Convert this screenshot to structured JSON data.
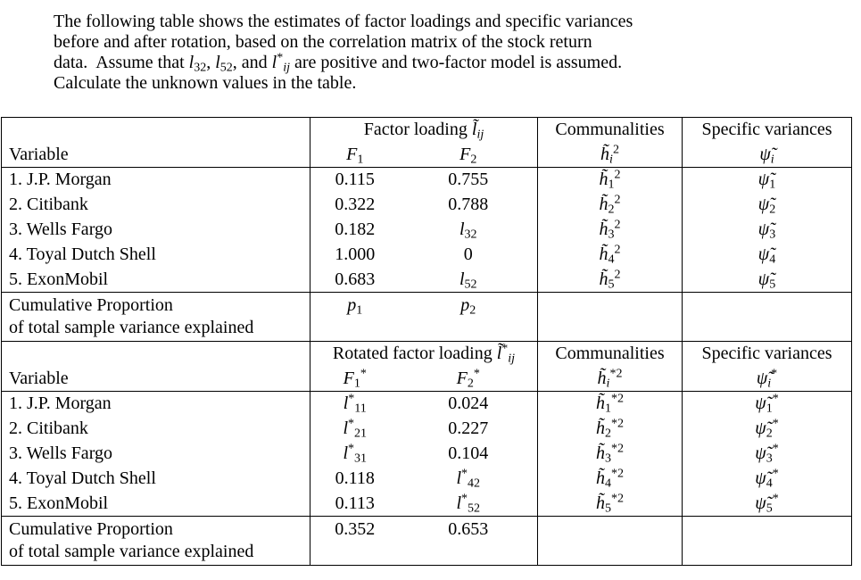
{
  "colors": {
    "background": "#ffffff",
    "text": "#000000",
    "table_border": "#000000"
  },
  "problem": {
    "text_html": "The following table shows the estimates of factor loadings and specific variances<br>before and after rotation, based on the correlation matrix of the stock return<br>data.  Assume that <i>l</i><sub>32</sub>, <i>l</i><sub>52</sub>, and <i>l</i><sup>*</sup><sub><i>ij</i></sub> are positive and two-factor model is assumed.<br>Calculate the unknown values in the table."
  },
  "table": {
    "section_before": {
      "group_label_html": "Factor loading <i>l̃</i><sub><i>ij</i></sub>",
      "communalities_label": "Communalities",
      "specific_variances_label": "Specific variances",
      "variable_label": "Variable",
      "f1_html": "<i>F</i><sub>1</sub>",
      "f2_html": "<i>F</i><sub>2</sub>",
      "communality_symbol_html": "<i>h̃</i><sub><i>i</i></sub><sup>2</sup>",
      "specific_variance_symbol_html": "<i>ψ̃</i><sub><i>i</i></sub>",
      "rows": [
        {
          "variable": "1. J.P. Morgan",
          "f1": "0.115",
          "f2": "0.755",
          "communality": "<i>h̃</i><sub>1</sub><sup>2</sup>",
          "specific_variance": "<i>ψ̃</i><sub>1</sub>"
        },
        {
          "variable": "2. Citibank",
          "f1": "0.322",
          "f2": "0.788",
          "communality": "<i>h̃</i><sub>2</sub><sup>2</sup>",
          "specific_variance": "<i>ψ̃</i><sub>2</sub>"
        },
        {
          "variable": "3. Wells Fargo",
          "f1": "0.182",
          "f2": "<i>l</i><sub>32</sub>",
          "communality": "<i>h̃</i><sub>3</sub><sup>2</sup>",
          "specific_variance": "<i>ψ̃</i><sub>3</sub>"
        },
        {
          "variable": "4. Toyal Dutch Shell",
          "f1": "1.000",
          "f2": "0",
          "communality": "<i>h̃</i><sub>4</sub><sup>2</sup>",
          "specific_variance": "<i>ψ̃</i><sub>4</sub>"
        },
        {
          "variable": "5. ExonMobil",
          "f1": "0.683",
          "f2": "<i>l</i><sub>52</sub>",
          "communality": "<i>h̃</i><sub>5</sub><sup>2</sup>",
          "specific_variance": "<i>ψ̃</i><sub>5</sub>"
        }
      ],
      "cumulative": {
        "label_html": "Cumulative Proportion<br>of total sample variance explained",
        "f1_html": "<i>p</i><sub>1</sub>",
        "f2_html": "<i>p</i><sub>2</sub>"
      }
    },
    "section_after": {
      "group_label_html": "Rotated factor loading <i>l̃</i><sup>*</sup><sub><i>ij</i></sub>",
      "communalities_label": "Communalities",
      "specific_variances_label": "Specific variances",
      "variable_label": "Variable",
      "f1_html": "<i>F</i><sub>1</sub><sup>*</sup>",
      "f2_html": "<i>F</i><sub>2</sub><sup>*</sup>",
      "communality_symbol_html": "<i>h̃</i><sub><i>i</i></sub><sup>*2</sup>",
      "specific_variance_symbol_html": "<i>ψ̃</i><sub><i>i</i></sub><sup>*</sup>",
      "rows": [
        {
          "variable": "1. J.P. Morgan",
          "f1": "<i>l</i><sup>*</sup><sub>11</sub>",
          "f2": "0.024",
          "communality": "<i>h̃</i><sub>1</sub><sup>*2</sup>",
          "specific_variance": "<i>ψ̃</i><sub>1</sub><sup>*</sup>"
        },
        {
          "variable": "2. Citibank",
          "f1": "<i>l</i><sup>*</sup><sub>21</sub>",
          "f2": "0.227",
          "communality": "<i>h̃</i><sub>2</sub><sup>*2</sup>",
          "specific_variance": "<i>ψ̃</i><sub>2</sub><sup>*</sup>"
        },
        {
          "variable": "3. Wells Fargo",
          "f1": "<i>l</i><sup>*</sup><sub>31</sub>",
          "f2": "0.104",
          "communality": "<i>h̃</i><sub>3</sub><sup>*2</sup>",
          "specific_variance": "<i>ψ̃</i><sub>3</sub><sup>*</sup>"
        },
        {
          "variable": "4. Toyal Dutch Shell",
          "f1": "0.118",
          "f2": "<i>l</i><sup>*</sup><sub>42</sub>",
          "communality": "<i>h̃</i><sub>4</sub><sup>*2</sup>",
          "specific_variance": "<i>ψ̃</i><sub>4</sub><sup>*</sup>"
        },
        {
          "variable": "5. ExonMobil",
          "f1": "0.113",
          "f2": "<i>l</i><sup>*</sup><sub>52</sub>",
          "communality": "<i>h̃</i><sub>5</sub><sup>*2</sup>",
          "specific_variance": "<i>ψ̃</i><sub>5</sub><sup>*</sup>"
        }
      ],
      "cumulative": {
        "label_html": "Cumulative Proportion<br>of total sample variance explained",
        "f1_html": "0.352",
        "f2_html": "0.653"
      }
    }
  }
}
